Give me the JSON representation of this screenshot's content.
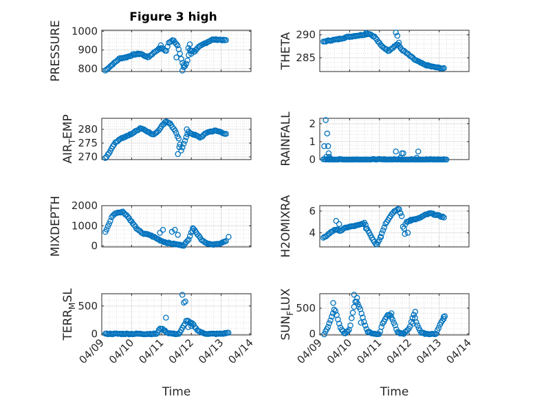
{
  "figure": {
    "title": "Figure 3 high",
    "marker_color": "#0072BD"
  },
  "chart_data": [
    {
      "type": "scatter",
      "id": "pressure",
      "title": "Figure 3 high",
      "ylabel": "PRESSURE",
      "xlabel": "",
      "ylim": [
        785,
        1005
      ],
      "yticks": [
        800,
        900,
        1000
      ],
      "xlim": [
        0,
        5
      ],
      "xticks": [
        0,
        1,
        2,
        3,
        4,
        5
      ],
      "xticklabels": [
        "04/09",
        "04/10",
        "04/11",
        "04/12",
        "04/13",
        "04/14"
      ],
      "grid": true,
      "keypoints": [
        [
          0.12,
          790
        ],
        [
          0.3,
          815
        ],
        [
          0.45,
          835
        ],
        [
          0.6,
          855
        ],
        [
          0.85,
          862
        ],
        [
          1.05,
          875
        ],
        [
          1.3,
          880
        ],
        [
          1.55,
          860
        ],
        [
          1.7,
          880
        ],
        [
          1.9,
          905
        ],
        [
          2.05,
          910
        ],
        [
          2.15,
          890
        ],
        [
          2.25,
          940
        ],
        [
          2.4,
          955
        ],
        [
          2.55,
          920
        ],
        [
          2.65,
          860
        ],
        [
          2.75,
          805
        ],
        [
          2.85,
          830
        ],
        [
          2.95,
          900
        ],
        [
          3.1,
          890
        ],
        [
          3.25,
          915
        ],
        [
          3.45,
          935
        ],
        [
          3.7,
          955
        ],
        [
          3.95,
          955
        ],
        [
          4.2,
          950
        ]
      ],
      "extra_points": [
        [
          2.7,
          790
        ],
        [
          2.75,
          820
        ],
        [
          2.9,
          910
        ],
        [
          2.95,
          930
        ],
        [
          3.0,
          880
        ],
        [
          1.98,
          925
        ],
        [
          2.5,
          860
        ]
      ]
    },
    {
      "type": "scatter",
      "id": "theta",
      "ylabel": "THETA",
      "xlabel": "",
      "ylim": [
        282,
        291
      ],
      "yticks": [
        285,
        290
      ],
      "xlim": [
        0,
        5
      ],
      "xticks": [
        0,
        1,
        2,
        3,
        4,
        5
      ],
      "xticklabels": [
        "04/09",
        "04/10",
        "04/11",
        "04/12",
        "04/13",
        "04/14"
      ],
      "grid": true,
      "keypoints": [
        [
          0.12,
          288.5
        ],
        [
          0.35,
          288.8
        ],
        [
          0.6,
          289
        ],
        [
          0.9,
          289.5
        ],
        [
          1.2,
          289.8
        ],
        [
          1.45,
          290
        ],
        [
          1.65,
          290.3
        ],
        [
          1.85,
          289.5
        ],
        [
          2.05,
          287.7
        ],
        [
          2.3,
          286.5
        ],
        [
          2.5,
          287.5
        ],
        [
          2.6,
          288
        ],
        [
          2.75,
          286.8
        ],
        [
          2.95,
          285.8
        ],
        [
          3.2,
          284.5
        ],
        [
          3.5,
          283.5
        ],
        [
          3.8,
          283
        ],
        [
          4.2,
          282.6
        ]
      ],
      "extra_points": [
        [
          2.55,
          290.5
        ],
        [
          2.6,
          289.8
        ],
        [
          2.65,
          288.3
        ],
        [
          1.55,
          290.4
        ],
        [
          2.7,
          287.2
        ]
      ]
    },
    {
      "type": "scatter",
      "id": "air_temp",
      "ylabel": "AIR_TEMP",
      "xlabel": "",
      "ylim": [
        269,
        284
      ],
      "yticks": [
        270,
        275,
        280
      ],
      "xlim": [
        0,
        5
      ],
      "xticks": [
        0,
        1,
        2,
        3,
        4,
        5
      ],
      "xticklabels": [
        "04/09",
        "04/10",
        "04/11",
        "04/12",
        "04/13",
        "04/14"
      ],
      "grid": true,
      "keypoints": [
        [
          0.12,
          269.5
        ],
        [
          0.25,
          271.5
        ],
        [
          0.4,
          274.5
        ],
        [
          0.6,
          276.5
        ],
        [
          0.85,
          277.5
        ],
        [
          1.1,
          279
        ],
        [
          1.3,
          280.5
        ],
        [
          1.5,
          279.5
        ],
        [
          1.7,
          278
        ],
        [
          1.85,
          279
        ],
        [
          2.0,
          281
        ],
        [
          2.15,
          283
        ],
        [
          2.3,
          282
        ],
        [
          2.45,
          279.5
        ],
        [
          2.6,
          276
        ],
        [
          2.65,
          272
        ],
        [
          2.75,
          275
        ],
        [
          2.9,
          279
        ],
        [
          3.1,
          278
        ],
        [
          3.3,
          277
        ],
        [
          3.55,
          279
        ],
        [
          3.8,
          279.5
        ],
        [
          4.0,
          279
        ],
        [
          4.2,
          278
        ]
      ],
      "extra_points": [
        [
          2.55,
          271
        ],
        [
          2.6,
          273.5
        ],
        [
          2.85,
          280
        ]
      ]
    },
    {
      "type": "scatter",
      "id": "rainfall",
      "ylabel": "RAINFALL",
      "xlabel": "",
      "ylim": [
        0,
        2.3
      ],
      "yticks": [
        0,
        1,
        2
      ],
      "xlim": [
        0,
        5
      ],
      "xticks": [
        0,
        1,
        2,
        3,
        4,
        5
      ],
      "xticklabels": [
        "04/09",
        "04/10",
        "04/11",
        "04/12",
        "04/13",
        "04/14"
      ],
      "grid": true,
      "keypoints": [
        [
          0.12,
          0
        ],
        [
          0.5,
          0
        ],
        [
          1.0,
          0
        ],
        [
          1.5,
          0
        ],
        [
          2.0,
          0
        ],
        [
          2.5,
          0
        ],
        [
          3.0,
          0
        ],
        [
          3.5,
          0
        ],
        [
          4.0,
          0
        ],
        [
          4.25,
          0
        ]
      ],
      "extra_points": [
        [
          0.15,
          0.75
        ],
        [
          0.2,
          2.2
        ],
        [
          0.25,
          1.45
        ],
        [
          0.28,
          0.75
        ],
        [
          0.3,
          0.35
        ],
        [
          0.22,
          0.15
        ],
        [
          0.32,
          0.15
        ],
        [
          0.35,
          0.05
        ],
        [
          2.55,
          0.45
        ],
        [
          2.75,
          0.35
        ],
        [
          2.8,
          0.35
        ],
        [
          3.3,
          0.45
        ],
        [
          2.7,
          0.1
        ],
        [
          3.25,
          0.1
        ]
      ]
    },
    {
      "type": "scatter",
      "id": "mixdepth",
      "ylabel": "MIXDEPTH",
      "xlabel": "",
      "ylim": [
        -50,
        2000
      ],
      "yticks": [
        0,
        1000,
        2000
      ],
      "xlim": [
        0,
        5
      ],
      "xticks": [
        0,
        1,
        2,
        3,
        4,
        5
      ],
      "xticklabels": [
        "04/09",
        "04/10",
        "04/11",
        "04/12",
        "04/13",
        "04/14"
      ],
      "grid": true,
      "keypoints": [
        [
          0.12,
          700
        ],
        [
          0.25,
          1100
        ],
        [
          0.35,
          1500
        ],
        [
          0.5,
          1650
        ],
        [
          0.7,
          1700
        ],
        [
          0.85,
          1500
        ],
        [
          1.0,
          1200
        ],
        [
          1.2,
          800
        ],
        [
          1.4,
          600
        ],
        [
          1.6,
          550
        ],
        [
          1.8,
          400
        ],
        [
          2.0,
          250
        ],
        [
          2.2,
          150
        ],
        [
          2.4,
          100
        ],
        [
          2.6,
          50
        ],
        [
          2.75,
          30
        ],
        [
          2.9,
          300
        ],
        [
          3.0,
          700
        ],
        [
          3.1,
          850
        ],
        [
          3.2,
          600
        ],
        [
          3.35,
          300
        ],
        [
          3.5,
          150
        ],
        [
          3.7,
          50
        ],
        [
          3.9,
          100
        ],
        [
          4.1,
          200
        ],
        [
          4.2,
          250
        ]
      ],
      "extra_points": [
        [
          1.95,
          650
        ],
        [
          2.05,
          800
        ],
        [
          2.35,
          700
        ],
        [
          2.45,
          800
        ],
        [
          2.55,
          550
        ],
        [
          4.25,
          450
        ],
        [
          3.05,
          880
        ]
      ]
    },
    {
      "type": "scatter",
      "id": "h2omixra",
      "ylabel": "H2OMIXRA",
      "xlabel": "",
      "ylim": [
        2.7,
        6.5
      ],
      "yticks": [
        4,
        6
      ],
      "xlim": [
        0,
        5
      ],
      "xticks": [
        0,
        1,
        2,
        3,
        4,
        5
      ],
      "xticklabels": [
        "04/09",
        "04/10",
        "04/11",
        "04/12",
        "04/13",
        "04/14"
      ],
      "grid": true,
      "keypoints": [
        [
          0.12,
          3.5
        ],
        [
          0.3,
          3.9
        ],
        [
          0.5,
          4.3
        ],
        [
          0.7,
          4.2
        ],
        [
          0.9,
          4.5
        ],
        [
          1.1,
          4.6
        ],
        [
          1.3,
          4.7
        ],
        [
          1.5,
          4.9
        ],
        [
          1.6,
          4.3
        ],
        [
          1.7,
          3.8
        ],
        [
          1.8,
          3.3
        ],
        [
          1.9,
          2.9
        ],
        [
          2.0,
          3.4
        ],
        [
          2.1,
          4.1
        ],
        [
          2.2,
          4.8
        ],
        [
          2.35,
          5.5
        ],
        [
          2.5,
          6.0
        ],
        [
          2.65,
          6.2
        ],
        [
          2.75,
          5.5
        ],
        [
          2.8,
          4.2
        ],
        [
          2.9,
          5.0
        ],
        [
          3.1,
          5.2
        ],
        [
          3.3,
          5.3
        ],
        [
          3.5,
          5.6
        ],
        [
          3.7,
          5.8
        ],
        [
          3.95,
          5.6
        ],
        [
          4.2,
          5.4
        ]
      ],
      "extra_points": [
        [
          0.55,
          5.1
        ],
        [
          0.65,
          4.8
        ],
        [
          1.55,
          4.4
        ],
        [
          2.05,
          3.6
        ],
        [
          2.7,
          5.8
        ],
        [
          2.85,
          3.9
        ],
        [
          2.95,
          4.0
        ],
        [
          3.05,
          5.2
        ]
      ]
    },
    {
      "type": "scatter",
      "id": "terr_msl",
      "ylabel": "TERR_MSL",
      "xlabel": "Time",
      "ylim": [
        -20,
        720
      ],
      "yticks": [
        0,
        500
      ],
      "xlim": [
        0,
        5
      ],
      "xticks": [
        0,
        1,
        2,
        3,
        4,
        5
      ],
      "xticklabels": [
        "04/09",
        "04/10",
        "04/11",
        "04/12",
        "04/13",
        "04/14"
      ],
      "grid": true,
      "keypoints": [
        [
          0.12,
          0
        ],
        [
          0.5,
          0
        ],
        [
          1.0,
          0
        ],
        [
          1.5,
          0
        ],
        [
          1.8,
          0
        ],
        [
          1.85,
          0
        ],
        [
          1.95,
          100
        ],
        [
          2.05,
          80
        ],
        [
          2.2,
          20
        ],
        [
          2.4,
          0
        ],
        [
          2.6,
          0
        ],
        [
          2.75,
          150
        ],
        [
          2.85,
          250
        ],
        [
          2.95,
          200
        ],
        [
          3.05,
          180
        ],
        [
          3.15,
          100
        ],
        [
          3.25,
          50
        ],
        [
          3.4,
          10
        ],
        [
          3.6,
          0
        ],
        [
          4.0,
          0
        ],
        [
          4.25,
          20
        ]
      ],
      "extra_points": [
        [
          2.15,
          290
        ],
        [
          2.7,
          700
        ],
        [
          2.75,
          560
        ],
        [
          2.8,
          580
        ],
        [
          3.0,
          140
        ],
        [
          2.9,
          120
        ]
      ]
    },
    {
      "type": "scatter",
      "id": "sun_flux",
      "ylabel": "SUN_FLUX",
      "xlabel": "Time",
      "ylim": [
        -20,
        780
      ],
      "yticks": [
        0,
        500
      ],
      "xlim": [
        0,
        5
      ],
      "xticks": [
        0,
        1,
        2,
        3,
        4,
        5
      ],
      "xticklabels": [
        "04/09",
        "04/10",
        "04/11",
        "04/12",
        "04/13",
        "04/14"
      ],
      "grid": true,
      "keypoints": [
        [
          0.15,
          0
        ],
        [
          0.25,
          100
        ],
        [
          0.35,
          250
        ],
        [
          0.5,
          500
        ],
        [
          0.6,
          300
        ],
        [
          0.7,
          100
        ],
        [
          0.85,
          0
        ],
        [
          1.0,
          100
        ],
        [
          1.1,
          400
        ],
        [
          1.2,
          650
        ],
        [
          1.35,
          500
        ],
        [
          1.5,
          200
        ],
        [
          1.6,
          50
        ],
        [
          1.8,
          0
        ],
        [
          2.0,
          0
        ],
        [
          2.1,
          200
        ],
        [
          2.25,
          350
        ],
        [
          2.35,
          380
        ],
        [
          2.5,
          200
        ],
        [
          2.6,
          30
        ],
        [
          2.8,
          0
        ],
        [
          3.0,
          100
        ],
        [
          3.1,
          300
        ],
        [
          3.15,
          380
        ],
        [
          3.25,
          200
        ],
        [
          3.4,
          20
        ],
        [
          3.6,
          0
        ],
        [
          3.9,
          0
        ],
        [
          4.0,
          150
        ],
        [
          4.1,
          250
        ],
        [
          4.2,
          350
        ]
      ],
      "extra_points": [
        [
          0.45,
          600
        ],
        [
          1.15,
          760
        ],
        [
          1.25,
          700
        ],
        [
          1.38,
          220
        ],
        [
          2.4,
          400
        ],
        [
          3.2,
          430
        ],
        [
          3.12,
          200
        ],
        [
          4.15,
          330
        ]
      ]
    }
  ]
}
